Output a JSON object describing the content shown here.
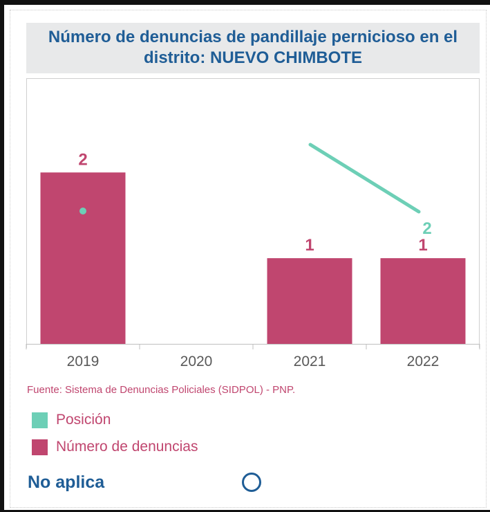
{
  "title": "Número de denuncias de pandillaje pernicioso en el distrito: NUEVO CHIMBOTE",
  "source": "Fuente: Sistema de Denuncias Policiales (SIDPOL) - PNP.",
  "legend": [
    {
      "label": "Posición",
      "color": "#6dcfb6"
    },
    {
      "label": "Número de denuncias",
      "color": "#c0466f"
    }
  ],
  "not_applicable_label": "No aplica",
  "chart_data": {
    "type": "bar",
    "title": "Número de denuncias de pandillaje pernicioso en el distrito: NUEVO CHIMBOTE",
    "categories": [
      "2019",
      "2020",
      "2021",
      "2022"
    ],
    "series": [
      {
        "name": "Número de denuncias",
        "type": "bar",
        "color": "#c0466f",
        "values": [
          2,
          null,
          1,
          1
        ]
      },
      {
        "name": "Posición",
        "type": "line",
        "color": "#6dcfb6",
        "values": [
          null,
          null,
          null,
          2
        ]
      }
    ],
    "ylim": [
      0,
      3.1
    ],
    "xlabel": "",
    "ylabel": "",
    "grid": false,
    "legend_position": "bottom-left"
  }
}
